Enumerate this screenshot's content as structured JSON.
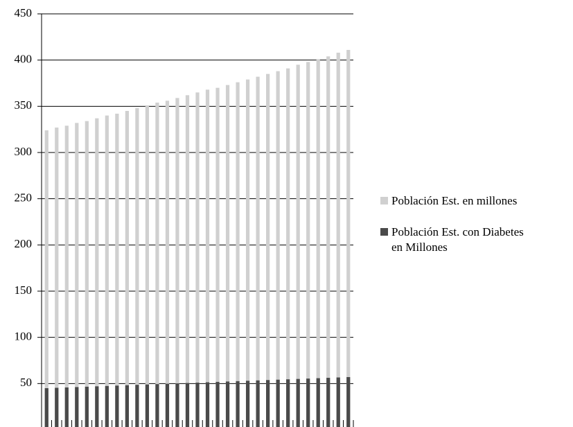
{
  "chart_data": {
    "type": "bar",
    "categories": [
      null,
      null,
      null,
      null,
      null,
      null,
      null,
      null,
      null,
      null,
      null,
      null,
      null,
      null,
      null,
      null,
      null,
      null,
      null,
      null,
      null,
      null,
      null,
      null,
      null,
      null,
      null,
      null,
      null,
      null,
      null
    ],
    "series": [
      {
        "name": "Población Est. en millones",
        "color": "#d0d0d0",
        "values": [
          324,
          327,
          329,
          332,
          334,
          337,
          340,
          342,
          345,
          348,
          351,
          354,
          356,
          359,
          362,
          365,
          368,
          370,
          373,
          376,
          379,
          382,
          385,
          388,
          391,
          395,
          398,
          401,
          404,
          408,
          411
        ]
      },
      {
        "name": "Población Est. con Diabetes en Millones",
        "color": "#4a4a4a",
        "values": [
          45,
          45.4,
          45.8,
          46.2,
          46.6,
          47,
          47.4,
          47.8,
          48.2,
          48.6,
          49,
          49.4,
          49.8,
          50.2,
          50.6,
          51,
          51.4,
          51.8,
          52.2,
          52.6,
          53,
          53.4,
          53.8,
          54.2,
          54.6,
          55,
          55.4,
          55.8,
          56.2,
          56.6,
          57
        ]
      }
    ],
    "ylim": [
      0,
      450
    ],
    "yticks": [
      50,
      100,
      150,
      200,
      250,
      300,
      350,
      400,
      450
    ],
    "grid": true,
    "legend": "right"
  }
}
